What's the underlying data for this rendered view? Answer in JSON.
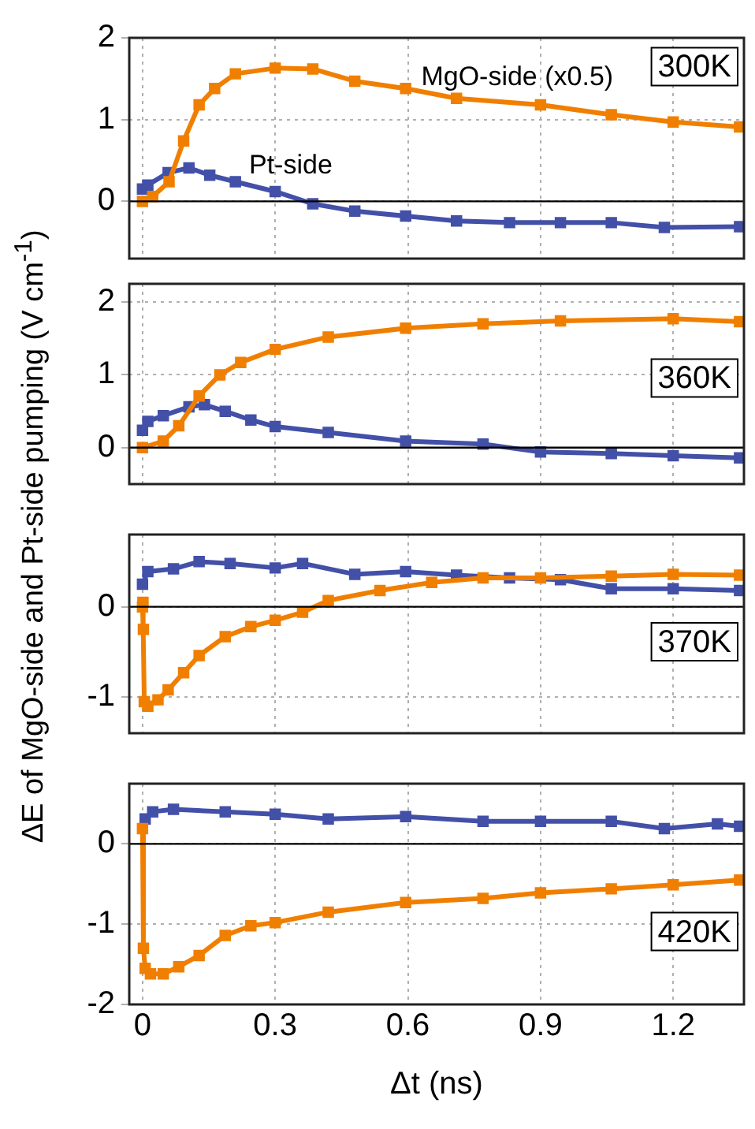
{
  "chart_data": [
    {
      "type": "line",
      "ylabel": "ΔE of MgO-side and Pt-side pumping (V cm$^{-1}$)",
      "annotations": [
        "300K"
      ],
      "xlim": [
        -0.03,
        1.36
      ],
      "xticks": [
        0,
        0.3,
        0.6,
        0.9,
        1.2
      ],
      "ylim": [
        -0.7,
        2
      ],
      "yticks": [
        0,
        1,
        2
      ],
      "grid": true,
      "marker": "square",
      "tick_labels": "y",
      "ref_lines": [
        {
          "axis": "y",
          "value": 0,
          "color": "#000000"
        }
      ],
      "series": [
        {
          "name": "MgO-side (x0.5)",
          "color": "#f07f00",
          "x": [
            0,
            0.023,
            0.06,
            0.093,
            0.128,
            0.163,
            0.21,
            0.3,
            0.385,
            0.48,
            0.595,
            0.71,
            0.9,
            1.06,
            1.2,
            1.35
          ],
          "values": [
            0,
            0.06,
            0.24,
            0.74,
            1.18,
            1.38,
            1.56,
            1.63,
            1.62,
            1.47,
            1.38,
            1.26,
            1.18,
            1.06,
            0.97,
            0.91
          ]
        },
        {
          "name": "Pt-side",
          "color": "#4350a8",
          "x": [
            0,
            0.012,
            0.058,
            0.105,
            0.152,
            0.21,
            0.3,
            0.385,
            0.48,
            0.595,
            0.71,
            0.83,
            0.945,
            1.06,
            1.18,
            1.35
          ],
          "values": [
            0.15,
            0.2,
            0.35,
            0.41,
            0.32,
            0.24,
            0.12,
            -0.03,
            -0.12,
            -0.18,
            -0.24,
            -0.26,
            -0.26,
            -0.26,
            -0.32,
            -0.31
          ]
        }
      ]
    },
    {
      "type": "line",
      "annotations": [
        "360K"
      ],
      "xlim": [
        -0.03,
        1.36
      ],
      "xticks": [
        0,
        0.3,
        0.6,
        0.9,
        1.2
      ],
      "ylim": [
        -0.5,
        2.25
      ],
      "yticks": [
        0,
        1,
        2
      ],
      "grid": true,
      "marker": "square",
      "tick_labels": "y",
      "ref_lines": [
        {
          "axis": "y",
          "value": 0,
          "color": "#000000"
        }
      ],
      "series": [
        {
          "color": "#f07f00",
          "x": [
            0,
            0.047,
            0.082,
            0.128,
            0.175,
            0.222,
            0.3,
            0.42,
            0.595,
            0.77,
            0.945,
            1.2,
            1.35
          ],
          "values": [
            0,
            0.09,
            0.3,
            0.71,
            1.0,
            1.17,
            1.35,
            1.52,
            1.64,
            1.7,
            1.74,
            1.77,
            1.73
          ]
        },
        {
          "color": "#4350a8",
          "x": [
            0,
            0.012,
            0.047,
            0.105,
            0.14,
            0.187,
            0.245,
            0.3,
            0.42,
            0.595,
            0.77,
            0.9,
            1.06,
            1.2,
            1.35
          ],
          "values": [
            0.24,
            0.36,
            0.44,
            0.56,
            0.59,
            0.5,
            0.38,
            0.29,
            0.21,
            0.09,
            0.05,
            -0.06,
            -0.08,
            -0.11,
            -0.14
          ]
        }
      ]
    },
    {
      "type": "line",
      "annotations": [
        "370K"
      ],
      "xlim": [
        -0.03,
        1.36
      ],
      "xticks": [
        0,
        0.3,
        0.6,
        0.9,
        1.2
      ],
      "ylim": [
        -1.4,
        0.8
      ],
      "yticks": [
        -1,
        0
      ],
      "grid": true,
      "marker": "square",
      "tick_labels": "y",
      "ref_lines": [
        {
          "axis": "y",
          "value": 0,
          "color": "#000000"
        }
      ],
      "series": [
        {
          "color": "#f07f00",
          "x": [
            0,
            0.001,
            0.002,
            0.004,
            0.012,
            0.035,
            0.058,
            0.093,
            0.128,
            0.187,
            0.245,
            0.3,
            0.362,
            0.42,
            0.537,
            0.654,
            0.77,
            0.9,
            1.06,
            1.2,
            1.35
          ],
          "values": [
            0,
            0.05,
            -0.25,
            -1.05,
            -1.1,
            -1.03,
            -0.92,
            -0.73,
            -0.54,
            -0.33,
            -0.22,
            -0.15,
            -0.06,
            0.07,
            0.18,
            0.27,
            0.32,
            0.32,
            0.34,
            0.36,
            0.35
          ]
        },
        {
          "color": "#4350a8",
          "x": [
            0,
            0.012,
            0.07,
            0.128,
            0.198,
            0.3,
            0.362,
            0.48,
            0.595,
            0.71,
            0.83,
            0.945,
            1.06,
            1.2,
            1.35
          ],
          "values": [
            0.25,
            0.39,
            0.42,
            0.5,
            0.48,
            0.43,
            0.48,
            0.36,
            0.39,
            0.35,
            0.32,
            0.3,
            0.2,
            0.2,
            0.18
          ]
        }
      ]
    },
    {
      "type": "line",
      "xlabel": "Δt (ns)",
      "annotations": [
        "420K"
      ],
      "xlim": [
        -0.03,
        1.36
      ],
      "xticks": [
        0,
        0.3,
        0.6,
        0.9,
        1.2
      ],
      "ylim": [
        -2,
        0.75
      ],
      "yticks": [
        -2,
        -1,
        0
      ],
      "grid": true,
      "marker": "square",
      "ref_lines": [
        {
          "axis": "y",
          "value": 0,
          "color": "#000000"
        }
      ],
      "series": [
        {
          "color": "#f07f00",
          "x": [
            0,
            0.002,
            0.006,
            0.018,
            0.047,
            0.082,
            0.128,
            0.187,
            0.245,
            0.3,
            0.42,
            0.595,
            0.77,
            0.9,
            1.06,
            1.2,
            1.35
          ],
          "values": [
            0.19,
            -1.3,
            -1.55,
            -1.62,
            -1.62,
            -1.53,
            -1.39,
            -1.14,
            -1.02,
            -0.98,
            -0.85,
            -0.73,
            -0.68,
            -0.61,
            -0.56,
            -0.51,
            -0.45
          ]
        },
        {
          "color": "#4350a8",
          "x": [
            0.006,
            0.023,
            0.07,
            0.187,
            0.3,
            0.42,
            0.595,
            0.77,
            0.9,
            1.06,
            1.18,
            1.3,
            1.35
          ],
          "values": [
            0.31,
            0.4,
            0.43,
            0.4,
            0.37,
            0.31,
            0.34,
            0.28,
            0.28,
            0.28,
            0.19,
            0.25,
            0.22
          ]
        }
      ]
    }
  ]
}
